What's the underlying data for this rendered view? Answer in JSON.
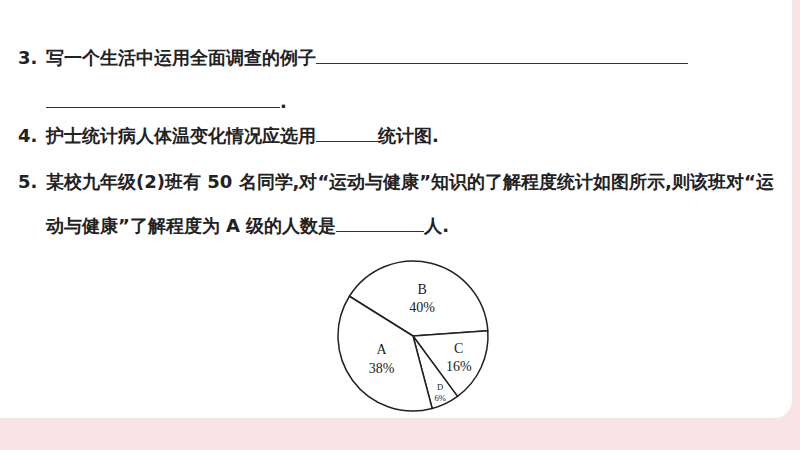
{
  "questions": [
    {
      "number": "3.",
      "text_before_blank": "写一个生活中运用全面调查的例子",
      "text_after_blank": "."
    },
    {
      "number": "4.",
      "text_before_blank": "护士统计病人体温变化情况应选用",
      "text_after_blank": "统计图."
    },
    {
      "number": "5.",
      "text_before_blank": "某校九年级(2)班有 50 名同学,对“运动与健康”知识的了解程度统计如图所示,则该班对“运动与健康”了解程度为 A 级的人数是",
      "text_after_blank": "人."
    }
  ],
  "chart_data": {
    "type": "pie",
    "categories": [
      "B",
      "C",
      "D",
      "A"
    ],
    "values": [
      40,
      16,
      6,
      38
    ],
    "value_labels": [
      "40%",
      "16%",
      "6%",
      "38%"
    ],
    "color": "#ffffff",
    "data_labels": true
  }
}
